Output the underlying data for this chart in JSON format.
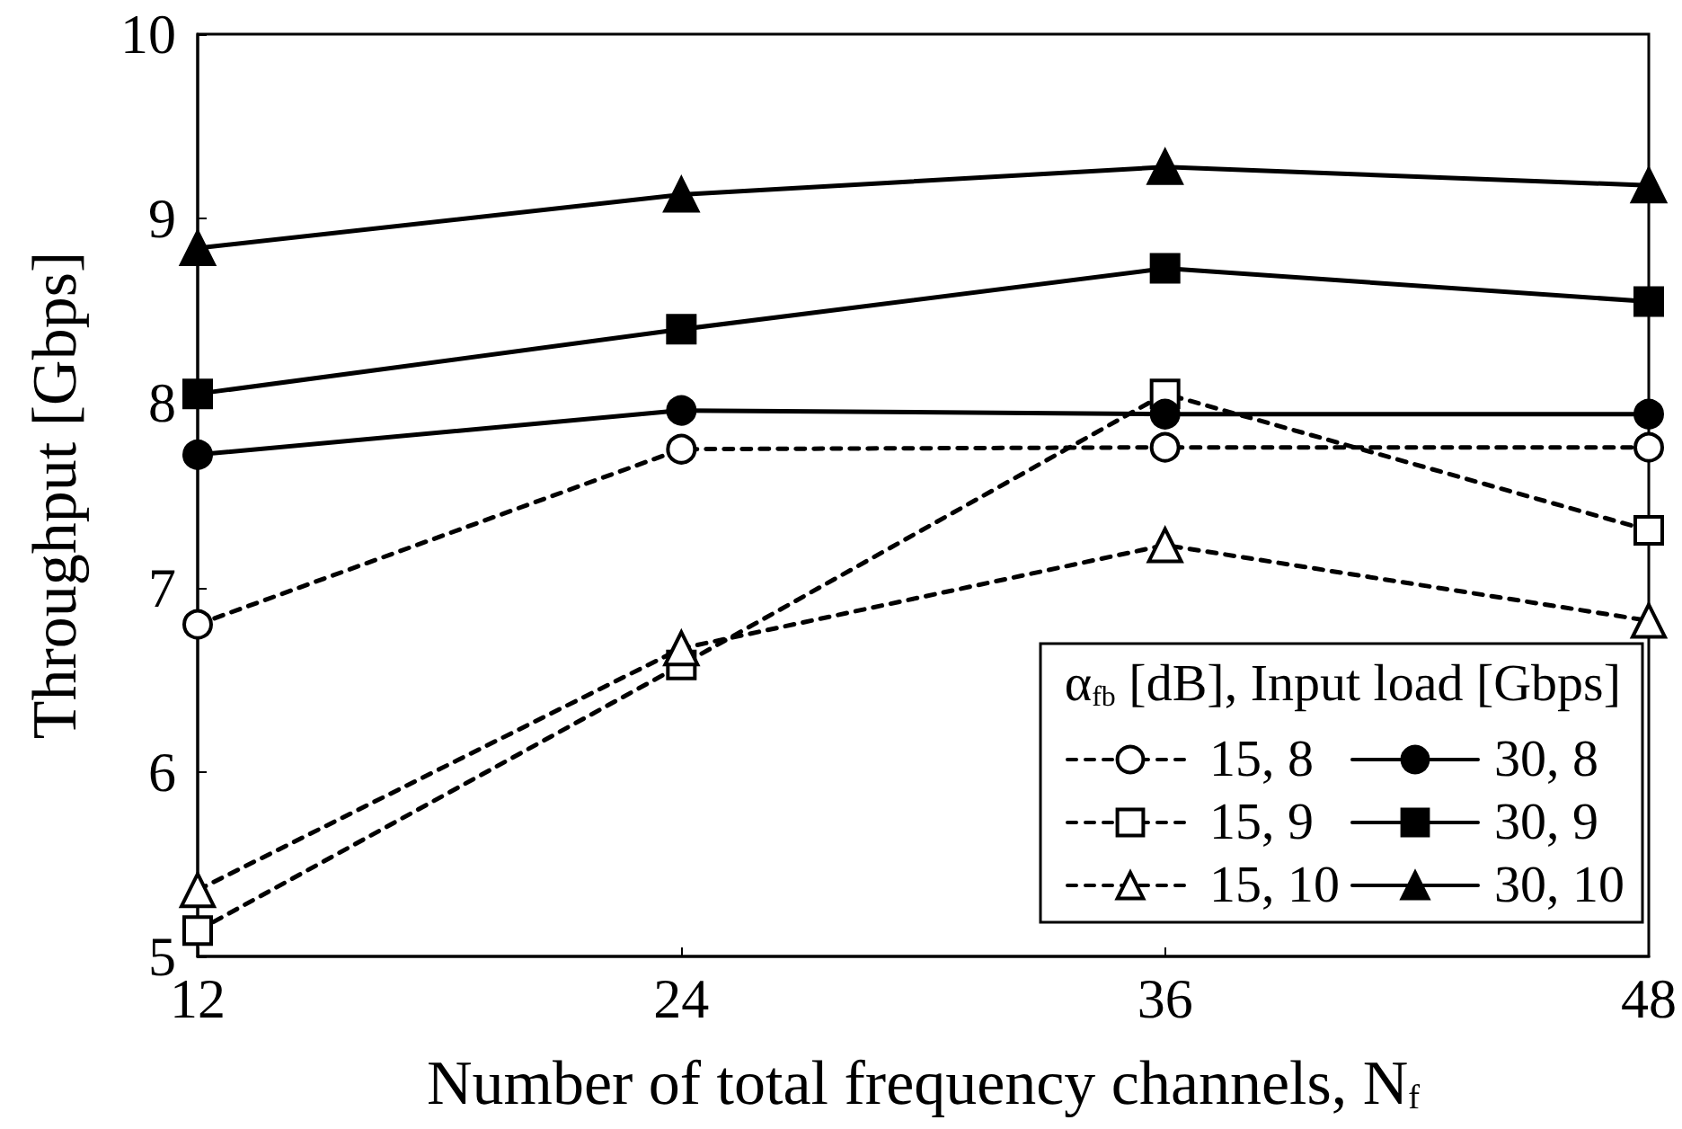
{
  "chart_data": {
    "type": "line",
    "xlabel": "Number of total frequency channels, N$_{f}$",
    "ylabel": "Throughput [Gbps]",
    "legend_title": "α$_{fb}$ [dB], Input load [Gbps]",
    "x": [
      12,
      24,
      36,
      48
    ],
    "xlim": [
      12,
      48
    ],
    "xticks": [
      12,
      24,
      36,
      48
    ],
    "ylim": [
      5,
      10
    ],
    "yticks": [
      5,
      6,
      7,
      8,
      9,
      10
    ],
    "grid": false,
    "legend": "bottom right",
    "series": [
      {
        "name": "15, 8",
        "color": "#000000",
        "marker": "circle",
        "line_style": "dashed",
        "values": [
          6.8,
          7.75,
          7.76,
          7.76
        ]
      },
      {
        "name": "15, 9",
        "color": "#000000",
        "marker": "square",
        "line_style": "dashed",
        "values": [
          5.14,
          6.58,
          8.05,
          7.31
        ]
      },
      {
        "name": "15, 10",
        "color": "#000000",
        "marker": "triangle",
        "line_style": "dashed",
        "values": [
          5.36,
          6.67,
          7.23,
          6.82
        ]
      },
      {
        "name": "30, 8",
        "color": "#000000",
        "marker": "circle",
        "line_style": "solid",
        "values": [
          7.72,
          7.96,
          7.94,
          7.94
        ]
      },
      {
        "name": "30, 9",
        "color": "#000000",
        "marker": "square",
        "line_style": "solid",
        "values": [
          8.05,
          8.4,
          8.73,
          8.55
        ]
      },
      {
        "name": "30, 10",
        "color": "#000000",
        "marker": "triangle",
        "line_style": "solid",
        "values": [
          8.84,
          9.13,
          9.28,
          9.18
        ]
      }
    ]
  }
}
